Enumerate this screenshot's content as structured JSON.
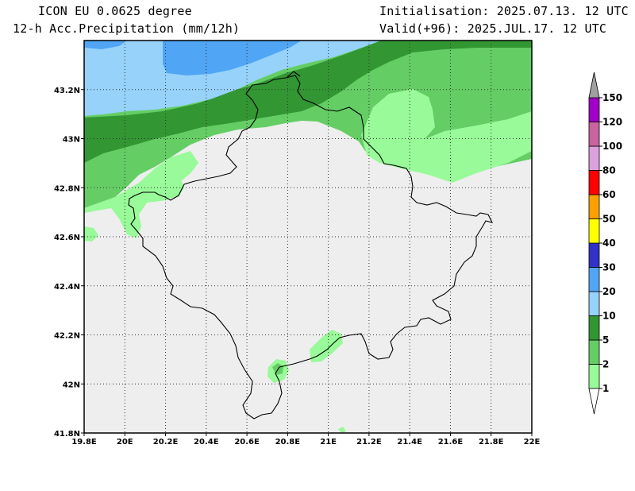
{
  "header": {
    "model": "ICON EU 0.0625 degree",
    "variable": "12-h Acc.Precipitation (mm/12h)",
    "init": "Initialisation: 2025.07.13. 12 UTC",
    "valid": "Valid(+96): 2025.JUL.17. 12 UTC"
  },
  "map": {
    "lon_range": [
      19.8,
      22.0
    ],
    "lat_range": [
      41.8,
      43.4
    ],
    "x_ticks": [
      {
        "v": 19.8,
        "label": "19.8E"
      },
      {
        "v": 20.0,
        "label": "20E"
      },
      {
        "v": 20.2,
        "label": "20.2E"
      },
      {
        "v": 20.4,
        "label": "20.4E"
      },
      {
        "v": 20.6,
        "label": "20.6E"
      },
      {
        "v": 20.8,
        "label": "20.8E"
      },
      {
        "v": 21.0,
        "label": "21E"
      },
      {
        "v": 21.2,
        "label": "21.2E"
      },
      {
        "v": 21.4,
        "label": "21.4E"
      },
      {
        "v": 21.6,
        "label": "21.6E"
      },
      {
        "v": 21.8,
        "label": "21.8E"
      },
      {
        "v": 22.0,
        "label": "22E"
      }
    ],
    "y_ticks": [
      {
        "v": 41.8,
        "label": "41.8N"
      },
      {
        "v": 42.0,
        "label": "42N"
      },
      {
        "v": 42.2,
        "label": "42.2N"
      },
      {
        "v": 42.4,
        "label": "42.4N"
      },
      {
        "v": 42.6,
        "label": "42.6N"
      },
      {
        "v": 42.8,
        "label": "42.8N"
      },
      {
        "v": 43.0,
        "label": "43N"
      },
      {
        "v": 43.2,
        "label": "43.2N"
      }
    ],
    "grid": "dotted",
    "background_color": "#eeeeee"
  },
  "colorbar": {
    "labels": [
      "1",
      "2",
      "5",
      "10",
      "20",
      "30",
      "40",
      "50",
      "60",
      "80",
      "100",
      "120",
      "150"
    ],
    "colors": [
      "#98fa98",
      "#64cd64",
      "#329632",
      "#96d2fa",
      "#50a5f5",
      "#3232c8",
      "#ffff00",
      "#ffa000",
      "#ff0000",
      "#dca0dc",
      "#c864a0",
      "#a000c8"
    ],
    "over_color": "#a0a0a0",
    "under_color": "#ffffff"
  }
}
